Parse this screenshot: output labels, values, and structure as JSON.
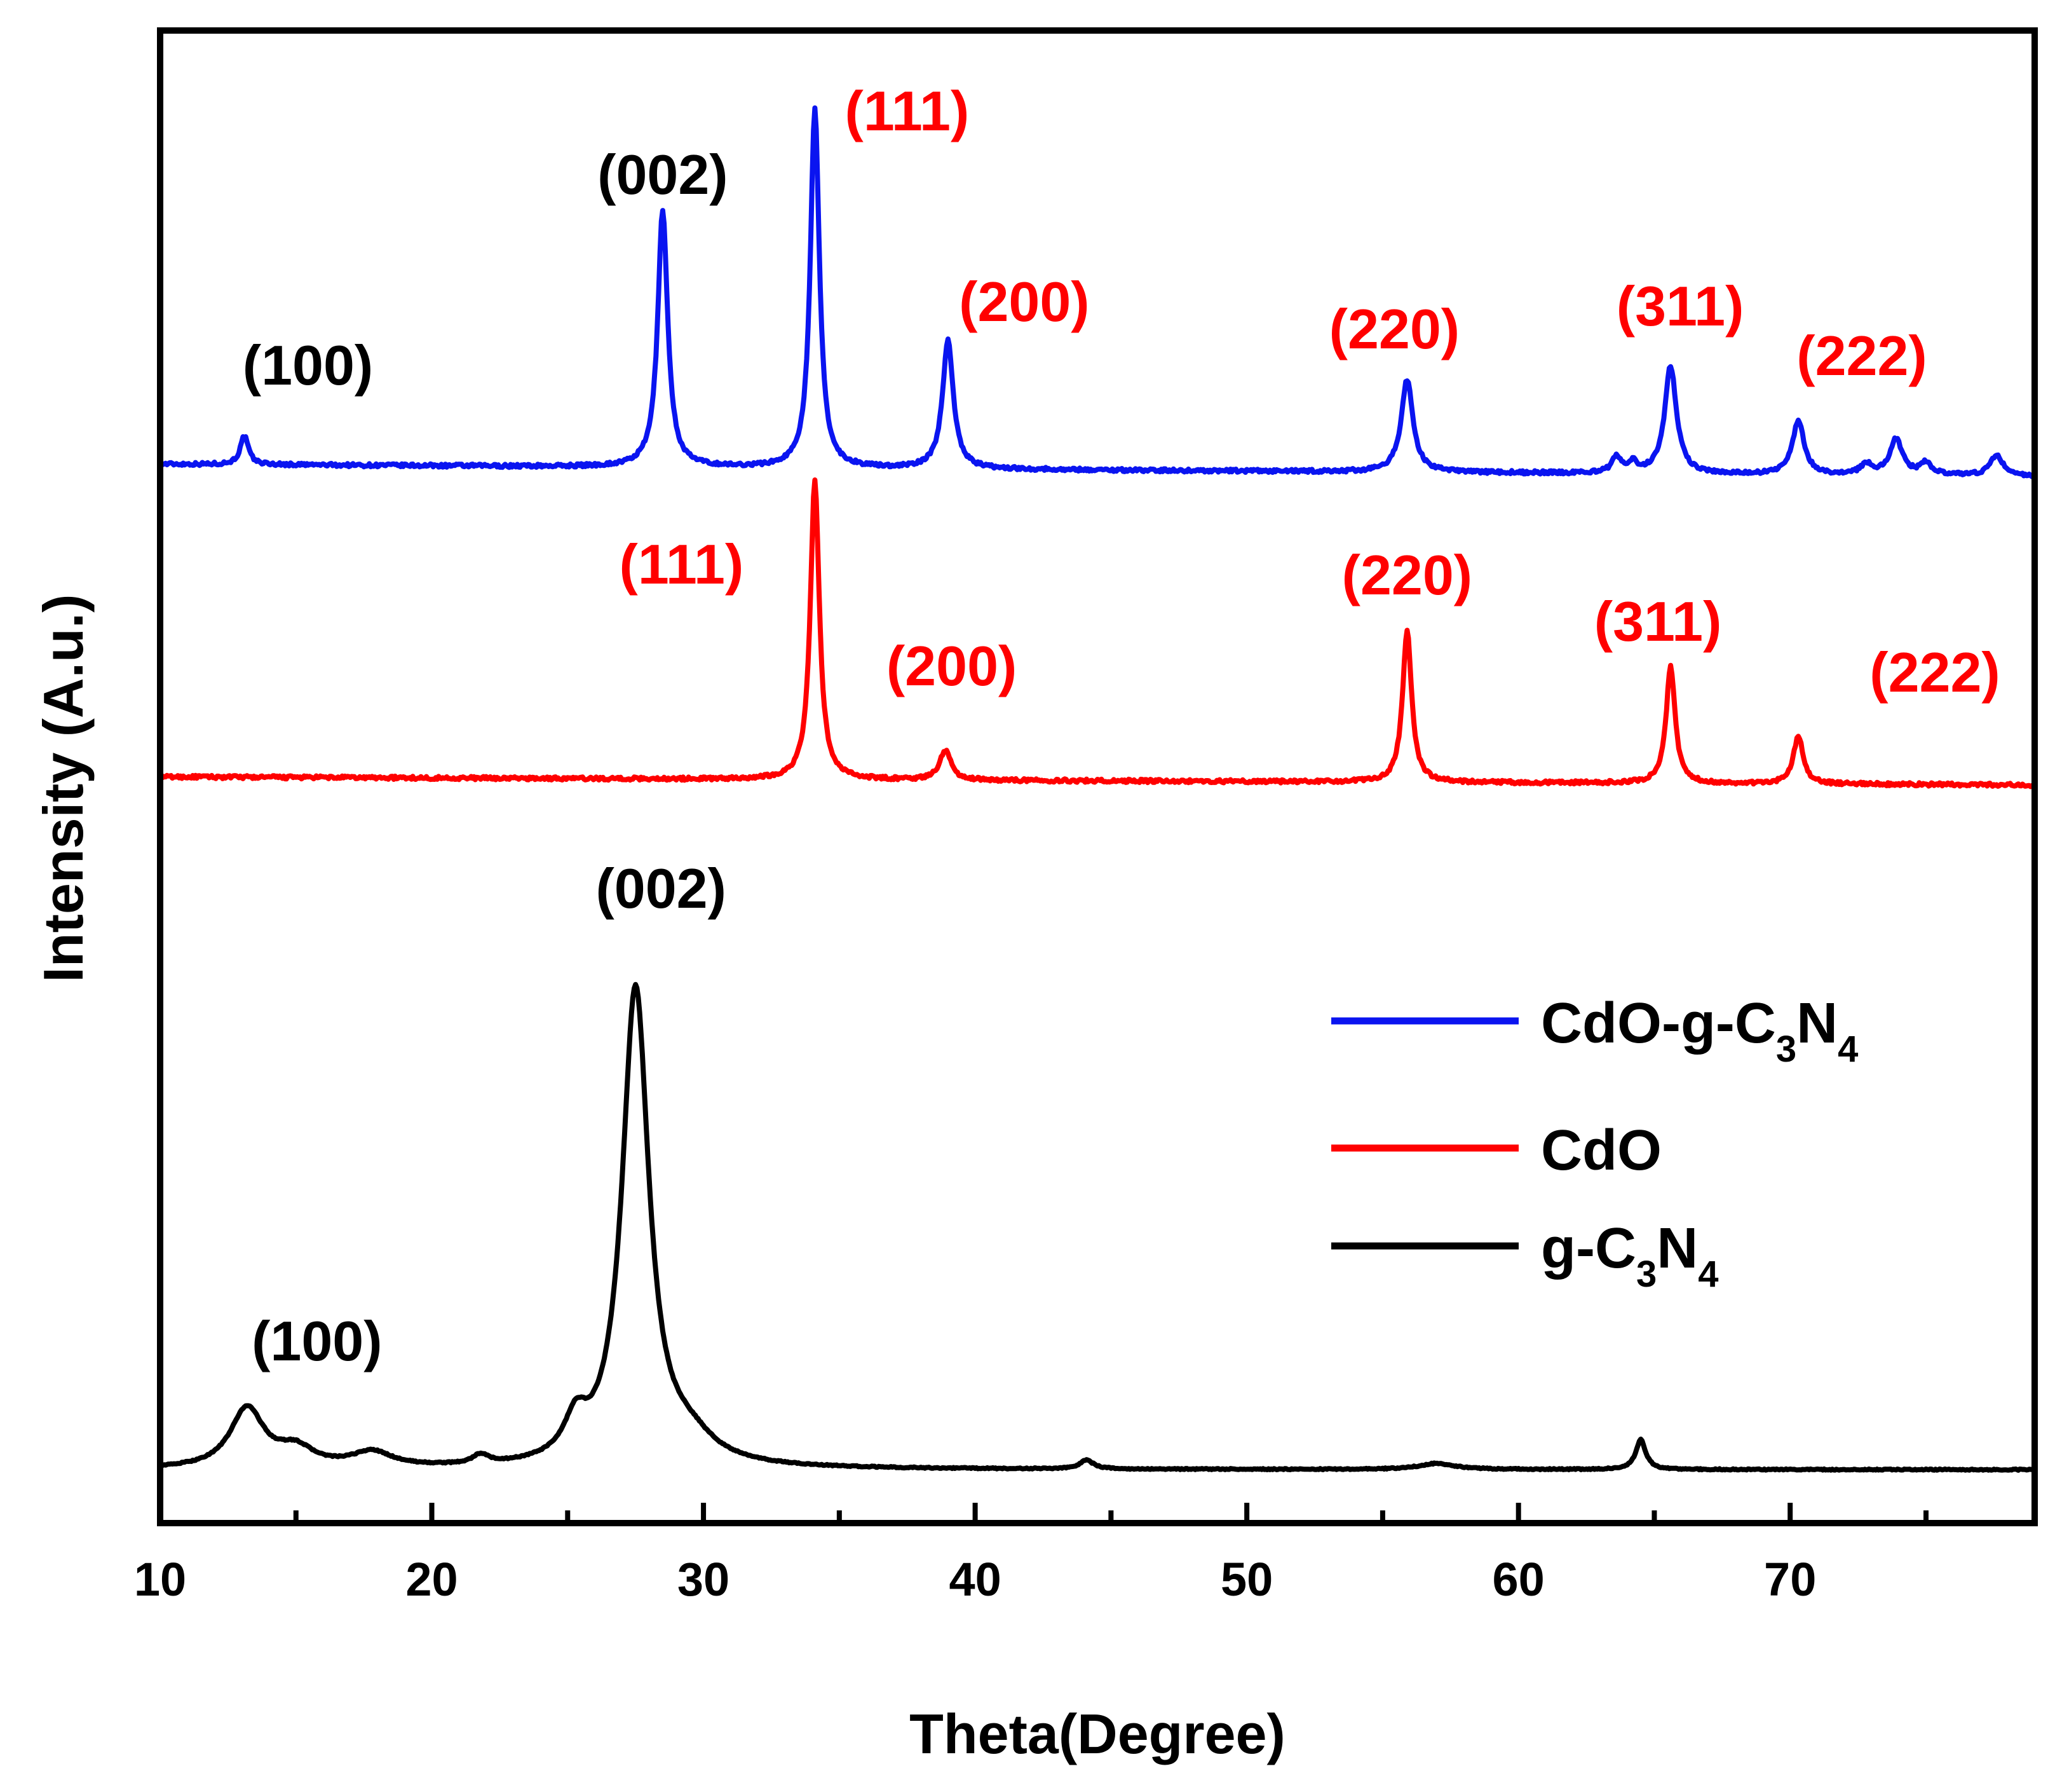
{
  "chart_data": {
    "type": "line",
    "title": "",
    "xlabel": "Theta(Degree)",
    "ylabel": "Intensity (A.u.)",
    "xlim": [
      10,
      79
    ],
    "x_ticks": [
      10,
      20,
      30,
      40,
      50,
      60,
      70
    ],
    "y_ticks": [],
    "grid": false,
    "legend_position": "center-right",
    "colors": {
      "blue": "#0a14f0",
      "red": "#ff0000",
      "black": "#000000"
    },
    "legend": [
      {
        "series": "cdo_gc3n4",
        "label": "CdO-g-C3N4",
        "parts": [
          "CdO-g-C",
          "3",
          "N",
          "4"
        ]
      },
      {
        "series": "cdo",
        "label": "CdO",
        "parts": [
          "CdO"
        ]
      },
      {
        "series": "gc3n4",
        "label": "g-C3N4",
        "parts": [
          "g-C",
          "3",
          "N",
          "4"
        ]
      }
    ],
    "series": [
      {
        "id": "cdo_gc3n4",
        "name": "CdO-g-C3N4",
        "color": "#0a14f0",
        "baseline": 0.0,
        "offset": 1.8,
        "baseline_slope": -0.0006,
        "peaks": [
          {
            "x": 13.1,
            "h": 0.095,
            "w": 0.18
          },
          {
            "x": 28.5,
            "h": 0.86,
            "w": 0.22
          },
          {
            "x": 34.1,
            "h": 1.2,
            "w": 0.2
          },
          {
            "x": 39.0,
            "h": 0.43,
            "w": 0.24
          },
          {
            "x": 55.9,
            "h": 0.31,
            "w": 0.26
          },
          {
            "x": 63.6,
            "h": 0.05,
            "w": 0.2
          },
          {
            "x": 64.2,
            "h": 0.035,
            "w": 0.2
          },
          {
            "x": 65.6,
            "h": 0.36,
            "w": 0.26
          },
          {
            "x": 70.3,
            "h": 0.18,
            "w": 0.26
          },
          {
            "x": 72.8,
            "h": 0.035,
            "w": 0.25
          },
          {
            "x": 73.9,
            "h": 0.12,
            "w": 0.28
          },
          {
            "x": 75.0,
            "h": 0.04,
            "w": 0.25
          },
          {
            "x": 77.6,
            "h": 0.07,
            "w": 0.28
          }
        ],
        "annotations": [
          {
            "text": "(100)",
            "x": 13.1,
            "color": "#000000"
          },
          {
            "text": "(002)",
            "x": 28.5,
            "color": "#000000"
          },
          {
            "text": "(111)",
            "x": 34.1,
            "color": "#ff0000"
          },
          {
            "text": "(200)",
            "x": 39.0,
            "color": "#ff0000"
          },
          {
            "text": "(220)",
            "x": 55.9,
            "color": "#ff0000"
          },
          {
            "text": "(311)",
            "x": 65.6,
            "color": "#ff0000"
          },
          {
            "text": "(222)",
            "x": 70.3,
            "color": "#ff0000"
          }
        ]
      },
      {
        "id": "cdo",
        "name": "CdO",
        "color": "#ff0000",
        "baseline": 0.0,
        "offset": 0.88,
        "baseline_slope": -0.0004,
        "peaks": [
          {
            "x": 34.1,
            "h": 1.0,
            "w": 0.2
          },
          {
            "x": 38.9,
            "h": 0.1,
            "w": 0.25
          },
          {
            "x": 55.9,
            "h": 0.51,
            "w": 0.2
          },
          {
            "x": 65.6,
            "h": 0.39,
            "w": 0.2
          },
          {
            "x": 70.3,
            "h": 0.16,
            "w": 0.22
          }
        ],
        "annotations": [
          {
            "text": "(111)",
            "x": 34.1,
            "color": "#ff0000"
          },
          {
            "text": "(200)",
            "x": 38.9,
            "color": "#ff0000"
          },
          {
            "text": "(220)",
            "x": 55.9,
            "color": "#ff0000"
          },
          {
            "text": "(311)",
            "x": 65.6,
            "color": "#ff0000"
          },
          {
            "text": "(222)",
            "x": 70.3,
            "color": "#ff0000"
          }
        ]
      },
      {
        "id": "gc3n4",
        "name": "g-C3N4",
        "color": "#000000",
        "baseline": 0.0,
        "offset": 0.0,
        "baseline_slope": 0.0,
        "peaks": [
          {
            "x": 13.2,
            "h": 0.2,
            "w": 0.75
          },
          {
            "x": 15.0,
            "h": 0.06,
            "w": 0.8
          },
          {
            "x": 17.8,
            "h": 0.05,
            "w": 0.9
          },
          {
            "x": 21.8,
            "h": 0.03,
            "w": 0.35
          },
          {
            "x": 25.3,
            "h": 0.12,
            "w": 0.5
          },
          {
            "x": 27.5,
            "h": 1.6,
            "w": 0.6
          },
          {
            "x": 29.5,
            "h": 0.07,
            "w": 1.1
          },
          {
            "x": 44.1,
            "h": 0.03,
            "w": 0.3
          },
          {
            "x": 57.0,
            "h": 0.02,
            "w": 0.8
          },
          {
            "x": 64.5,
            "h": 0.1,
            "w": 0.22
          }
        ],
        "annotations": [
          {
            "text": "(100)",
            "x": 13.2,
            "color": "#000000"
          },
          {
            "text": "(002)",
            "x": 27.5,
            "color": "#000000"
          }
        ]
      }
    ]
  }
}
